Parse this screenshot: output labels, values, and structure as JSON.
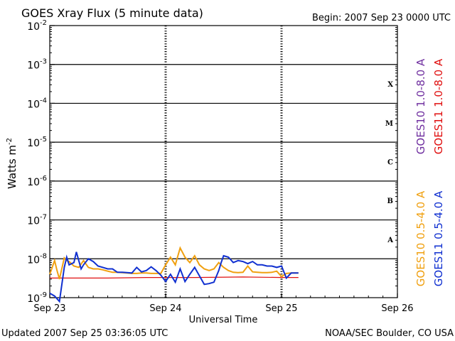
{
  "header": {
    "title": "GOES Xray Flux (5 minute data)",
    "begin": "Begin:  2007 Sep 23 0000 UTC"
  },
  "footer": {
    "updated": "Updated 2007 Sep 25 03:36:05 UTC",
    "credit": "NOAA/SEC Boulder, CO USA"
  },
  "chart_data": {
    "type": "line",
    "title": "GOES Xray Flux (5 minute data)",
    "xlabel": "Universal Time",
    "ylabel": "Watts m",
    "ylabel_sup": "-2",
    "x_unit": "hours since 2007 Sep 23 0000 UTC",
    "xlim": [
      0,
      72
    ],
    "yscale": "log",
    "ylim": [
      1e-09,
      0.01
    ],
    "x_ticks": [
      {
        "label": "Sep 23",
        "value": 0
      },
      {
        "label": "Sep 24",
        "value": 24
      },
      {
        "label": "Sep 25",
        "value": 48
      },
      {
        "label": "Sep 26",
        "value": 72
      }
    ],
    "y_ticks": [
      {
        "base": "10",
        "exp": "-9",
        "value": 1e-09
      },
      {
        "base": "10",
        "exp": "-8",
        "value": 1e-08
      },
      {
        "base": "10",
        "exp": "-7",
        "value": 1e-07
      },
      {
        "base": "10",
        "exp": "-6",
        "value": 1e-06
      },
      {
        "base": "10",
        "exp": "-5",
        "value": 1e-05
      },
      {
        "base": "10",
        "exp": "-4",
        "value": 0.0001
      },
      {
        "base": "10",
        "exp": "-3",
        "value": 0.001
      },
      {
        "base": "10",
        "exp": "-2",
        "value": 0.01
      }
    ],
    "flare_classes": [
      {
        "label": "A",
        "lower": 1e-08
      },
      {
        "label": "B",
        "lower": 1e-07
      },
      {
        "label": "C",
        "lower": 1e-06
      },
      {
        "label": "M",
        "lower": 1e-05
      },
      {
        "label": "X",
        "lower": 0.0001
      }
    ],
    "grid": true,
    "series": [
      {
        "name": "GOES10 1.0-8.0 A",
        "color": "#7030a0",
        "x": [],
        "values": []
      },
      {
        "name": "GOES11 1.0-8.0 A",
        "color": "#e01010",
        "x": [
          0,
          12,
          20,
          30,
          40,
          48,
          51.5
        ],
        "values": [
          3.2e-09,
          3.2e-09,
          3.3e-09,
          3.3e-09,
          3.4e-09,
          3.3e-09,
          3.3e-09
        ]
      },
      {
        "name": "GOES10 0.5-4.0 A",
        "color": "#f0a010",
        "x": [
          0,
          1,
          1.5,
          2,
          3,
          3.5,
          4,
          5,
          6,
          7,
          8,
          9,
          10,
          11,
          12,
          13,
          14,
          15,
          16,
          17,
          18,
          19,
          20,
          21,
          22,
          23,
          24,
          25,
          26,
          27,
          28,
          29,
          30,
          31,
          32,
          33,
          34,
          35,
          36,
          37,
          38,
          39,
          40,
          41,
          42,
          43,
          44,
          45,
          46,
          47,
          48,
          49,
          50,
          51.5
        ],
        "values": [
          4e-09,
          9e-09,
          5e-09,
          3e-09,
          1.05e-08,
          9e-09,
          8.5e-09,
          6.5e-09,
          6e-09,
          9e-09,
          6e-09,
          5.5e-09,
          5.5e-09,
          5.2e-09,
          4.8e-09,
          4.5e-09,
          4.5e-09,
          4.4e-09,
          4.3e-09,
          4.2e-09,
          4.2e-09,
          4.3e-09,
          4.3e-09,
          4.2e-09,
          4.2e-09,
          4.2e-09,
          7e-09,
          1.1e-08,
          7e-09,
          1.9e-08,
          1.1e-08,
          8e-09,
          1.2e-08,
          7e-09,
          5.5e-09,
          5e-09,
          5.5e-09,
          8e-09,
          6e-09,
          5e-09,
          4.5e-09,
          4.4e-09,
          4.5e-09,
          6.5e-09,
          4.6e-09,
          4.5e-09,
          4.4e-09,
          4.4e-09,
          4.5e-09,
          4.8e-09,
          3.5e-09,
          4.2e-09,
          4.3e-09,
          4.3e-09
        ]
      },
      {
        "name": "GOES11 0.5-4.0 A",
        "color": "#1030d0",
        "x": [
          0,
          1,
          2,
          3,
          3.5,
          4,
          5,
          5.5,
          6,
          6.5,
          7,
          8,
          9,
          10,
          11,
          12,
          13,
          14,
          15,
          16,
          17,
          18,
          19,
          20,
          21,
          22,
          23,
          24,
          25,
          26,
          27,
          28,
          29,
          30,
          32,
          33,
          34,
          35,
          35.5,
          36,
          37,
          38,
          39,
          40,
          41,
          42,
          43,
          44,
          45,
          46,
          47,
          48,
          49,
          50,
          51.5
        ],
        "values": [
          1.3e-09,
          1.1e-09,
          8e-10,
          6e-09,
          1.1e-08,
          7e-09,
          8e-09,
          1.5e-08,
          9e-09,
          5.5e-09,
          7e-09,
          1e-08,
          8.5e-09,
          6.5e-09,
          6e-09,
          5.5e-09,
          5.5e-09,
          4.5e-09,
          4.5e-09,
          4.4e-09,
          4.3e-09,
          6e-09,
          4.6e-09,
          5e-09,
          6.2e-09,
          5e-09,
          3.8e-09,
          2.6e-09,
          4e-09,
          2.5e-09,
          5.5e-09,
          2.6e-09,
          4e-09,
          6e-09,
          2.2e-09,
          2.3e-09,
          2.5e-09,
          5e-09,
          8e-09,
          1.2e-08,
          1.1e-08,
          8e-09,
          9e-09,
          8.5e-09,
          7.5e-09,
          8.5e-09,
          7e-09,
          7e-09,
          6.5e-09,
          6.5e-09,
          6e-09,
          6.5e-09,
          3.2e-09,
          4.3e-09,
          4.3e-09
        ]
      }
    ]
  }
}
